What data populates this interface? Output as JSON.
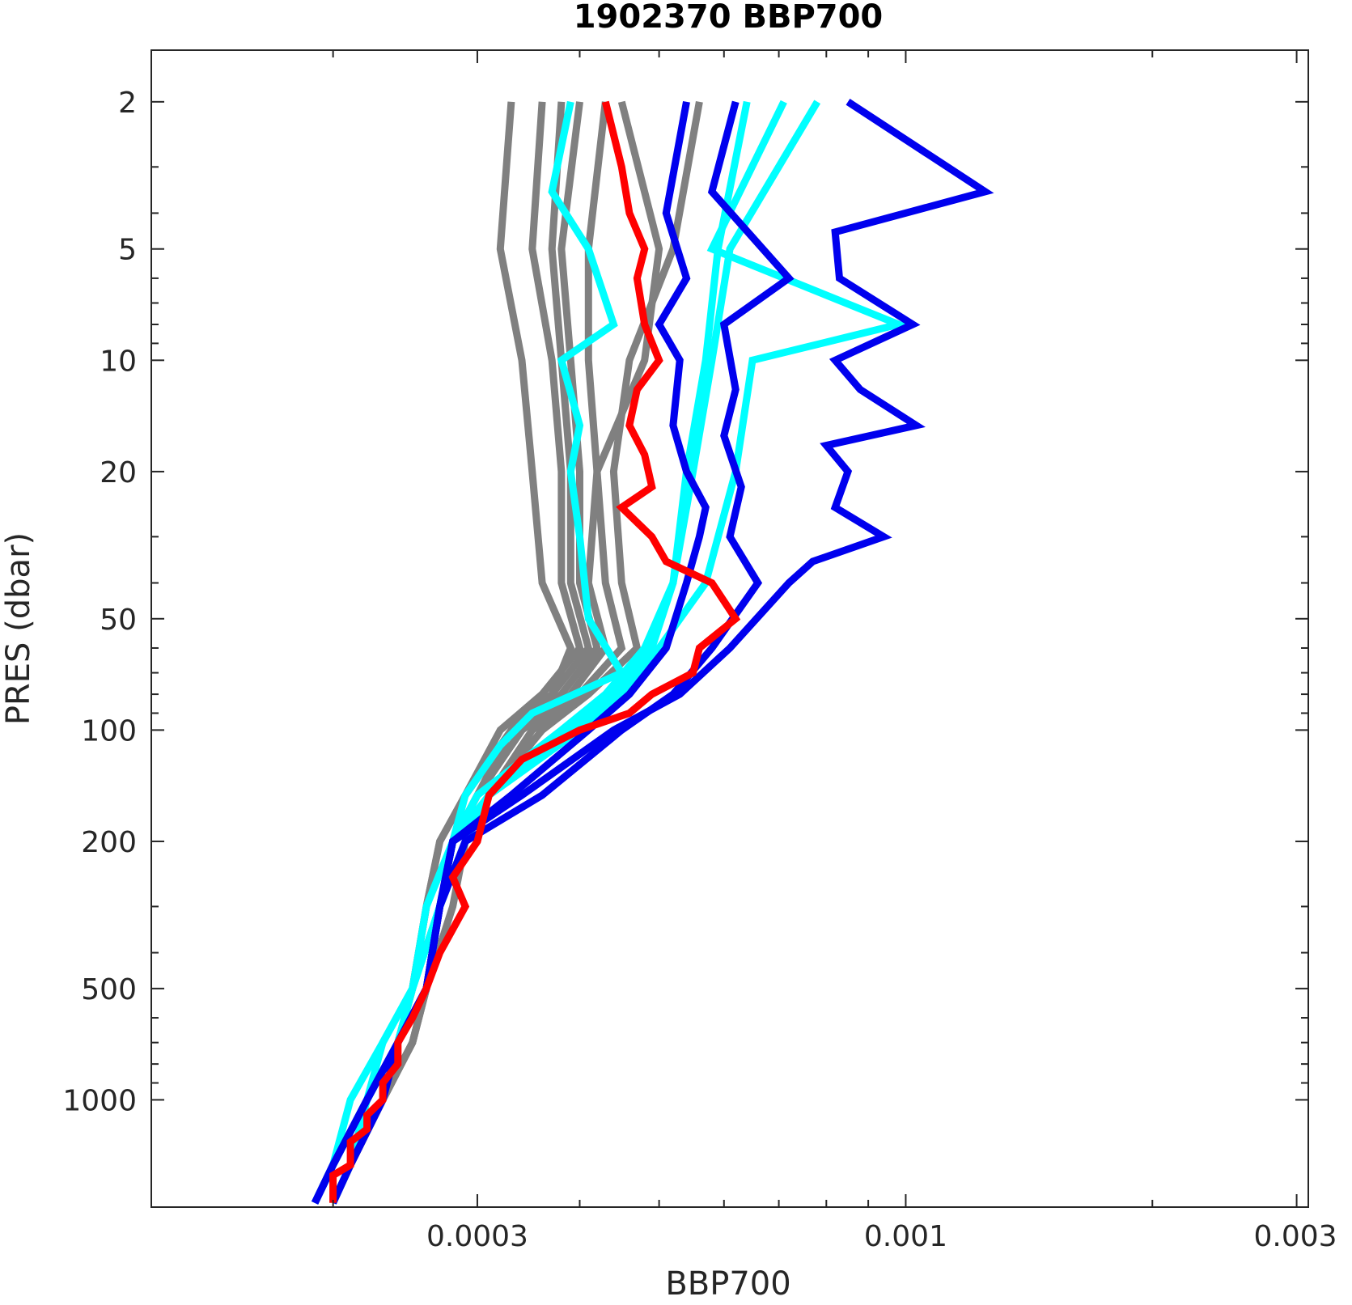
{
  "colors": {
    "background_profiles": "#808080",
    "cyan_profiles": "#00ffff",
    "blue_profiles": "#0000ee",
    "latest_profile": "#ff0000",
    "axes": "#262626"
  },
  "chart_data": {
    "type": "line",
    "title": "1902370 BBP700",
    "xlabel": "BBP700",
    "ylabel": "PRES (dbar)",
    "xscale": "log",
    "yscale": "log",
    "yreversed": true,
    "xlim": [
      0.00012,
      0.0031
    ],
    "ylim": [
      1.45,
      1950
    ],
    "xticks": [
      0.0003,
      0.001,
      0.003
    ],
    "xtick_labels": [
      "0.0003",
      "0.001",
      "0.003"
    ],
    "yticks": [
      2,
      5,
      10,
      20,
      50,
      100,
      200,
      500,
      1000
    ],
    "ytick_labels": [
      "2",
      "5",
      "10",
      "20",
      "50",
      "100",
      "200",
      "500",
      "1000"
    ],
    "grid": false,
    "legend": "none",
    "series": [
      {
        "color": "gray",
        "pres": [
          2,
          5,
          10,
          20,
          40,
          60,
          80,
          100,
          150,
          200,
          300,
          500,
          700,
          1000,
          1500,
          1900
        ],
        "bbp700": [
          0.00033,
          0.00032,
          0.00034,
          0.00035,
          0.00036,
          0.00039,
          0.00037,
          0.00033,
          0.0003,
          0.00028,
          0.00027,
          0.00026,
          0.00025,
          0.00023,
          0.00021,
          0.0002
        ]
      },
      {
        "color": "gray",
        "pres": [
          2,
          5,
          10,
          20,
          40,
          60,
          80,
          100,
          150,
          200,
          300,
          500,
          700,
          1000,
          1500,
          1900
        ],
        "bbp700": [
          0.00036,
          0.00035,
          0.00037,
          0.00038,
          0.00038,
          0.0004,
          0.00036,
          0.00032,
          0.00029,
          0.00027,
          0.00026,
          0.00025,
          0.00024,
          0.00022,
          0.0002,
          0.00019
        ]
      },
      {
        "color": "gray",
        "pres": [
          2,
          5,
          10,
          20,
          40,
          60,
          80,
          100,
          150,
          200,
          300,
          500,
          700,
          1000,
          1500,
          1900
        ],
        "bbp700": [
          0.0004,
          0.00038,
          0.00039,
          0.0004,
          0.0004,
          0.00042,
          0.00038,
          0.00034,
          0.0003,
          0.00028,
          0.00027,
          0.00026,
          0.00024,
          0.00023,
          0.00021,
          0.0002
        ]
      },
      {
        "color": "gray",
        "pres": [
          2,
          5,
          10,
          20,
          40,
          60,
          80,
          100,
          150,
          200,
          300,
          500,
          700,
          1000,
          1500,
          1900
        ],
        "bbp700": [
          0.00043,
          0.00041,
          0.00041,
          0.00042,
          0.00043,
          0.00045,
          0.0004,
          0.00035,
          0.00031,
          0.00029,
          0.00028,
          0.00026,
          0.00025,
          0.00023,
          0.00021,
          0.0002
        ]
      },
      {
        "color": "gray",
        "pres": [
          2,
          5,
          10,
          20,
          40,
          60,
          80,
          100,
          150,
          200,
          300,
          500,
          700,
          1000,
          1500,
          1900
        ],
        "bbp700": [
          0.00056,
          0.00052,
          0.00046,
          0.00044,
          0.00045,
          0.00047,
          0.00041,
          0.00036,
          0.00031,
          0.00029,
          0.00027,
          0.00026,
          0.00025,
          0.00023,
          0.00021,
          0.0002
        ]
      },
      {
        "color": "gray",
        "pres": [
          2,
          5,
          10,
          20,
          40,
          60,
          80,
          100,
          150,
          200,
          300,
          500,
          700,
          1000,
          1500,
          1900
        ],
        "bbp700": [
          0.00038,
          0.00037,
          0.00038,
          0.00039,
          0.00039,
          0.00041,
          0.00037,
          0.00033,
          0.00029,
          0.00027,
          0.00026,
          0.00025,
          0.00024,
          0.00022,
          0.0002,
          0.00019
        ]
      },
      {
        "color": "gray",
        "pres": [
          2,
          5,
          10,
          20,
          40,
          60,
          80,
          100,
          150,
          200,
          300,
          500,
          700,
          1000,
          1500,
          1900
        ],
        "bbp700": [
          0.00045,
          0.0005,
          0.00048,
          0.00042,
          0.00041,
          0.00043,
          0.00039,
          0.00034,
          0.0003,
          0.00028,
          0.00027,
          0.00026,
          0.00024,
          0.00022,
          0.0002,
          0.00019
        ]
      },
      {
        "color": "cyan",
        "pres": [
          2,
          3.5,
          5,
          8,
          10,
          15,
          20,
          30,
          50,
          70,
          90,
          110,
          150,
          200,
          300,
          500,
          700,
          1000,
          1500,
          1900
        ],
        "bbp700": [
          0.00039,
          0.00037,
          0.00041,
          0.00044,
          0.00038,
          0.0004,
          0.00039,
          0.0004,
          0.00041,
          0.00045,
          0.00035,
          0.00032,
          0.00029,
          0.00028,
          0.00026,
          0.00025,
          0.00023,
          0.00021,
          0.0002,
          0.00019
        ]
      },
      {
        "color": "cyan",
        "pres": [
          2,
          5,
          10,
          20,
          40,
          60,
          80,
          100,
          150,
          200,
          300,
          500,
          700,
          1000,
          1500,
          1900
        ],
        "bbp700": [
          0.00078,
          0.00061,
          0.00058,
          0.00055,
          0.00052,
          0.00049,
          0.00044,
          0.00039,
          0.00031,
          0.00028,
          0.00027,
          0.00025,
          0.00024,
          0.00022,
          0.00021,
          0.0002
        ]
      },
      {
        "color": "cyan",
        "pres": [
          2,
          5,
          8,
          10,
          20,
          40,
          60,
          80,
          100,
          150,
          200,
          300,
          500,
          700,
          1000,
          1500,
          1900
        ],
        "bbp700": [
          0.00071,
          0.00058,
          0.00098,
          0.00065,
          0.00062,
          0.00057,
          0.0005,
          0.00045,
          0.0004,
          0.00031,
          0.00029,
          0.00027,
          0.00025,
          0.00024,
          0.00022,
          0.0002,
          0.00019
        ]
      },
      {
        "color": "cyan",
        "pres": [
          2,
          5,
          10,
          20,
          40,
          60,
          80,
          100,
          150,
          200,
          300,
          500,
          700,
          1000,
          1500,
          1900
        ],
        "bbp700": [
          0.00064,
          0.00059,
          0.00057,
          0.00054,
          0.00052,
          0.00048,
          0.00043,
          0.00038,
          0.0003,
          0.00028,
          0.00027,
          0.00025,
          0.00023,
          0.00022,
          0.0002,
          0.00019
        ]
      },
      {
        "color": "blue",
        "pres": [
          2,
          4,
          6,
          8,
          10,
          15,
          20,
          25,
          30,
          40,
          60,
          80,
          100,
          150,
          200,
          300,
          500,
          700,
          1000,
          1500,
          1900
        ],
        "bbp700": [
          0.00054,
          0.00051,
          0.00054,
          0.0005,
          0.00053,
          0.00052,
          0.00054,
          0.00057,
          0.00056,
          0.00054,
          0.00051,
          0.00046,
          0.00041,
          0.00033,
          0.00028,
          0.00027,
          0.00026,
          0.00024,
          0.00022,
          0.0002,
          0.00019
        ]
      },
      {
        "color": "blue",
        "pres": [
          2,
          3.5,
          6,
          8,
          12,
          16,
          22,
          30,
          40,
          60,
          80,
          100,
          150,
          200,
          300,
          500,
          700,
          1000,
          1500,
          1900
        ],
        "bbp700": [
          0.00062,
          0.00058,
          0.00072,
          0.0006,
          0.00062,
          0.0006,
          0.00063,
          0.00061,
          0.00066,
          0.00058,
          0.00052,
          0.00045,
          0.00036,
          0.00029,
          0.00027,
          0.00026,
          0.00024,
          0.00023,
          0.00021,
          0.0002
        ]
      },
      {
        "color": "blue",
        "pres": [
          2,
          3.5,
          4.5,
          6,
          8,
          10,
          12,
          15,
          17,
          20,
          25,
          30,
          35,
          40,
          60,
          80,
          100,
          150,
          200,
          300,
          500,
          700,
          1000,
          1500,
          1900
        ],
        "bbp700": [
          0.00085,
          0.00125,
          0.00082,
          0.00083,
          0.00102,
          0.00082,
          0.00088,
          0.00103,
          0.0008,
          0.00085,
          0.00082,
          0.00094,
          0.00077,
          0.00072,
          0.00061,
          0.00053,
          0.00044,
          0.00034,
          0.00028,
          0.00027,
          0.00026,
          0.00024,
          0.00022,
          0.0002,
          0.00019
        ]
      },
      {
        "color": "red",
        "pres": [
          2,
          3,
          4,
          5,
          6,
          8,
          10,
          12,
          15,
          18,
          22,
          25,
          30,
          35,
          40,
          50,
          60,
          70,
          80,
          90,
          100,
          120,
          150,
          200,
          250,
          300,
          400,
          500,
          600,
          700,
          800,
          900,
          1000,
          1100,
          1200,
          1300,
          1400,
          1500,
          1600,
          1700,
          1800,
          1900
        ],
        "bbp700": [
          0.00043,
          0.00045,
          0.00046,
          0.00048,
          0.00047,
          0.00048,
          0.0005,
          0.00047,
          0.00046,
          0.00048,
          0.00049,
          0.00045,
          0.00049,
          0.00051,
          0.00058,
          0.00062,
          0.00056,
          0.00055,
          0.00049,
          0.00046,
          0.0004,
          0.00034,
          0.00031,
          0.0003,
          0.00028,
          0.00029,
          0.00027,
          0.00026,
          0.00025,
          0.00024,
          0.00024,
          0.00023,
          0.00023,
          0.00022,
          0.00022,
          0.00021,
          0.00021,
          0.00021,
          0.0002,
          0.0002,
          0.0002,
          0.0002
        ]
      }
    ]
  }
}
